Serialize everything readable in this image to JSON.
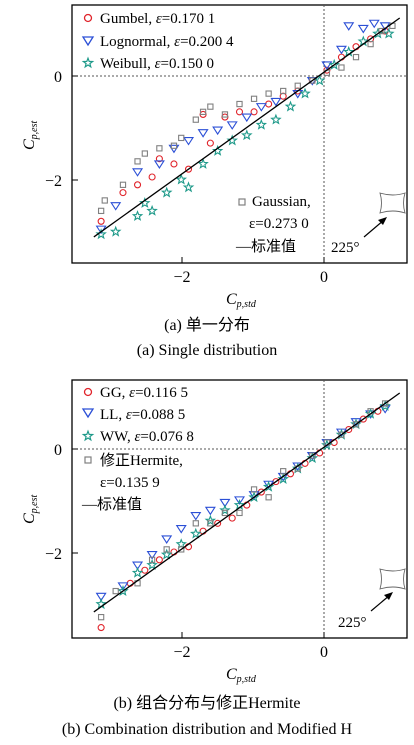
{
  "panels": [
    {
      "caption_cn": "(a) 单一分布",
      "caption_en": "(a) Single distribution",
      "legend_top": [
        {
          "label_pre": "Gumbel, ",
          "eps": "=0.170 1",
          "marker": "circle",
          "color": "#e0242b"
        },
        {
          "label_pre": "Lognormal, ",
          "eps": "=0.200 4",
          "marker": "tri-down",
          "color": "#2b4fd6"
        },
        {
          "label_pre": "Weibull, ",
          "eps": "=0.150 0",
          "marker": "star",
          "color": "#1f9a8a"
        }
      ],
      "legend_bottom": {
        "line1": "Gaussian,",
        "line2": "ε=0.273 0",
        "line3": "—标准值",
        "marker": "square",
        "color": "#808080"
      },
      "angle": "225°"
    },
    {
      "caption_cn": "(b) 组合分布与修正Hermite",
      "caption_en": "(b) Combination distribution and Modified H",
      "legend_top": [
        {
          "label_pre": "GG, ",
          "eps": "=0.116 5",
          "marker": "circle",
          "color": "#e0242b"
        },
        {
          "label_pre": "LL, ",
          "eps": "=0.088 5",
          "marker": "tri-down",
          "color": "#2b4fd6"
        },
        {
          "label_pre": "WW, ",
          "eps": "=0.076 8",
          "marker": "star",
          "color": "#1f9a8a"
        },
        {
          "label_pre": "修正Hermite,",
          "eps": "",
          "marker": "square",
          "color": "#808080"
        }
      ],
      "legend_extra": {
        "line1": "ε=0.135 9",
        "line2": "—标准值"
      },
      "angle": "225°"
    }
  ],
  "axes": {
    "xlabel_main": "C",
    "xlabel_sub": "p,std",
    "ylabel_main": "C",
    "ylabel_sub": "p,est",
    "xticks": [
      "−2",
      "0"
    ],
    "yticks": [
      "0",
      "−2"
    ]
  },
  "chart_data": [
    {
      "type": "scatter",
      "xlim": [
        -3.4,
        1.2
      ],
      "ylim": [
        -3.6,
        1.35
      ],
      "series": [
        {
          "name": "Gumbel, ε=0.170 1",
          "marker": "circle",
          "points": [
            [
              -3.0,
              -2.8
            ],
            [
              -2.7,
              -2.25
            ],
            [
              -2.5,
              -2.1
            ],
            [
              -2.3,
              -1.95
            ],
            [
              -2.2,
              -1.6
            ],
            [
              -2.0,
              -1.7
            ],
            [
              -1.8,
              -1.8
            ],
            [
              -1.6,
              -0.75
            ],
            [
              -1.5,
              -1.3
            ],
            [
              -1.3,
              -0.8
            ],
            [
              -1.1,
              -0.7
            ],
            [
              -0.9,
              -0.7
            ],
            [
              -0.7,
              -0.55
            ],
            [
              -0.5,
              -0.4
            ],
            [
              -0.3,
              -0.3
            ],
            [
              -0.1,
              -0.1
            ],
            [
              0.1,
              0.1
            ],
            [
              0.3,
              0.35
            ],
            [
              0.5,
              0.55
            ],
            [
              0.7,
              0.7
            ],
            [
              0.9,
              0.85
            ]
          ]
        },
        {
          "name": "Lognormal, ε=0.200 4",
          "marker": "tri-down",
          "points": [
            [
              -3.0,
              -2.95
            ],
            [
              -2.8,
              -2.5
            ],
            [
              -2.5,
              -1.85
            ],
            [
              -2.2,
              -1.7
            ],
            [
              -2.0,
              -1.4
            ],
            [
              -1.8,
              -1.25
            ],
            [
              -1.6,
              -1.1
            ],
            [
              -1.4,
              -1.05
            ],
            [
              -1.2,
              -0.95
            ],
            [
              -1.0,
              -0.8
            ],
            [
              -0.8,
              -0.6
            ],
            [
              -0.6,
              -0.5
            ],
            [
              -0.3,
              -0.35
            ],
            [
              -0.1,
              -0.1
            ],
            [
              0.1,
              0.2
            ],
            [
              0.3,
              0.5
            ],
            [
              0.4,
              0.95
            ],
            [
              0.6,
              0.9
            ],
            [
              0.75,
              1.0
            ],
            [
              0.9,
              0.95
            ]
          ]
        },
        {
          "name": "Weibull, ε=0.150 0",
          "marker": "star",
          "points": [
            [
              -3.0,
              -3.05
            ],
            [
              -2.8,
              -3.0
            ],
            [
              -2.5,
              -2.7
            ],
            [
              -2.4,
              -2.45
            ],
            [
              -2.3,
              -2.6
            ],
            [
              -2.1,
              -2.25
            ],
            [
              -1.9,
              -2.0
            ],
            [
              -1.8,
              -2.15
            ],
            [
              -1.6,
              -1.7
            ],
            [
              -1.4,
              -1.45
            ],
            [
              -1.2,
              -1.25
            ],
            [
              -1.0,
              -1.15
            ],
            [
              -0.8,
              -0.95
            ],
            [
              -0.6,
              -0.85
            ],
            [
              -0.4,
              -0.6
            ],
            [
              -0.2,
              -0.35
            ],
            [
              0.0,
              -0.1
            ],
            [
              0.2,
              0.2
            ],
            [
              0.4,
              0.45
            ],
            [
              0.6,
              0.65
            ],
            [
              0.8,
              0.8
            ],
            [
              0.95,
              0.8
            ]
          ]
        },
        {
          "name": "Gaussian, ε=0.273 0",
          "marker": "square",
          "points": [
            [
              -3.0,
              -2.6
            ],
            [
              -2.95,
              -2.4
            ],
            [
              -2.7,
              -2.1
            ],
            [
              -2.5,
              -1.65
            ],
            [
              -2.4,
              -1.5
            ],
            [
              -2.2,
              -1.4
            ],
            [
              -2.0,
              -1.35
            ],
            [
              -1.9,
              -1.2
            ],
            [
              -1.7,
              -0.85
            ],
            [
              -1.6,
              -0.7
            ],
            [
              -1.5,
              -0.6
            ],
            [
              -1.3,
              -0.75
            ],
            [
              -1.1,
              -0.55
            ],
            [
              -0.9,
              -0.45
            ],
            [
              -0.7,
              -0.35
            ],
            [
              -0.5,
              -0.3
            ],
            [
              -0.3,
              -0.2
            ],
            [
              -0.1,
              -0.1
            ],
            [
              0.1,
              0.05
            ],
            [
              0.3,
              0.15
            ],
            [
              0.5,
              0.35
            ],
            [
              0.7,
              0.6
            ],
            [
              0.85,
              0.85
            ],
            [
              1.0,
              0.95
            ]
          ]
        },
        {
          "name": "标准值",
          "marker": "line",
          "points": [
            [
              -3.1,
              -3.1
            ],
            [
              1.1,
              1.1
            ]
          ]
        }
      ]
    },
    {
      "type": "scatter",
      "xlim": [
        -3.4,
        1.2
      ],
      "ylim": [
        -3.6,
        1.35
      ],
      "series": [
        {
          "name": "GG, ε=0.116 5",
          "marker": "circle",
          "points": [
            [
              -3.0,
              -3.4
            ],
            [
              -2.6,
              -2.55
            ],
            [
              -2.4,
              -2.3
            ],
            [
              -2.2,
              -2.1
            ],
            [
              -2.0,
              -1.95
            ],
            [
              -1.8,
              -1.85
            ],
            [
              -1.6,
              -1.55
            ],
            [
              -1.4,
              -1.4
            ],
            [
              -1.2,
              -1.3
            ],
            [
              -1.0,
              -1.05
            ],
            [
              -0.8,
              -0.8
            ],
            [
              -0.6,
              -0.6
            ],
            [
              -0.4,
              -0.45
            ],
            [
              -0.2,
              -0.25
            ],
            [
              0.0,
              -0.05
            ],
            [
              0.2,
              0.15
            ],
            [
              0.4,
              0.4
            ],
            [
              0.6,
              0.6
            ],
            [
              0.8,
              0.75
            ]
          ]
        },
        {
          "name": "LL, ε=0.088 5",
          "marker": "tri-down",
          "points": [
            [
              -3.0,
              -2.8
            ],
            [
              -2.7,
              -2.6
            ],
            [
              -2.5,
              -2.2
            ],
            [
              -2.3,
              -2.0
            ],
            [
              -2.1,
              -1.7
            ],
            [
              -1.9,
              -1.5
            ],
            [
              -1.7,
              -1.25
            ],
            [
              -1.5,
              -1.15
            ],
            [
              -1.3,
              -1.0
            ],
            [
              -1.1,
              -0.95
            ],
            [
              -0.9,
              -0.85
            ],
            [
              -0.7,
              -0.65
            ],
            [
              -0.5,
              -0.5
            ],
            [
              -0.3,
              -0.3
            ],
            [
              -0.1,
              -0.1
            ],
            [
              0.1,
              0.15
            ],
            [
              0.3,
              0.35
            ],
            [
              0.5,
              0.55
            ],
            [
              0.7,
              0.7
            ],
            [
              0.9,
              0.8
            ]
          ]
        },
        {
          "name": "WW, ε=0.076 8",
          "marker": "star",
          "points": [
            [
              -3.0,
              -2.95
            ],
            [
              -2.7,
              -2.7
            ],
            [
              -2.5,
              -2.35
            ],
            [
              -2.3,
              -2.2
            ],
            [
              -2.1,
              -2.0
            ],
            [
              -1.9,
              -1.8
            ],
            [
              -1.7,
              -1.6
            ],
            [
              -1.5,
              -1.35
            ],
            [
              -1.3,
              -1.15
            ],
            [
              -1.1,
              -1.05
            ],
            [
              -0.9,
              -0.9
            ],
            [
              -0.7,
              -0.7
            ],
            [
              -0.5,
              -0.55
            ],
            [
              -0.3,
              -0.35
            ],
            [
              -0.1,
              -0.15
            ],
            [
              0.1,
              0.1
            ],
            [
              0.3,
              0.3
            ],
            [
              0.5,
              0.5
            ],
            [
              0.7,
              0.7
            ],
            [
              0.9,
              0.85
            ]
          ]
        },
        {
          "name": "修正Hermite, ε=0.135 9",
          "marker": "square",
          "points": [
            [
              -3.0,
              -3.2
            ],
            [
              -2.8,
              -2.7
            ],
            [
              -2.5,
              -2.55
            ],
            [
              -2.3,
              -2.1
            ],
            [
              -2.1,
              -1.9
            ],
            [
              -1.9,
              -1.9
            ],
            [
              -1.7,
              -1.4
            ],
            [
              -1.5,
              -1.4
            ],
            [
              -1.3,
              -1.2
            ],
            [
              -1.1,
              -1.2
            ],
            [
              -0.9,
              -0.75
            ],
            [
              -0.7,
              -0.9
            ],
            [
              -0.5,
              -0.4
            ],
            [
              -0.3,
              -0.35
            ],
            [
              -0.1,
              -0.1
            ],
            [
              0.1,
              0.15
            ],
            [
              0.3,
              0.3
            ],
            [
              0.5,
              0.5
            ],
            [
              0.7,
              0.75
            ],
            [
              0.9,
              0.9
            ]
          ]
        },
        {
          "name": "标准值",
          "marker": "line",
          "points": [
            [
              -3.1,
              -3.1
            ],
            [
              1.1,
              1.1
            ]
          ]
        }
      ]
    }
  ]
}
